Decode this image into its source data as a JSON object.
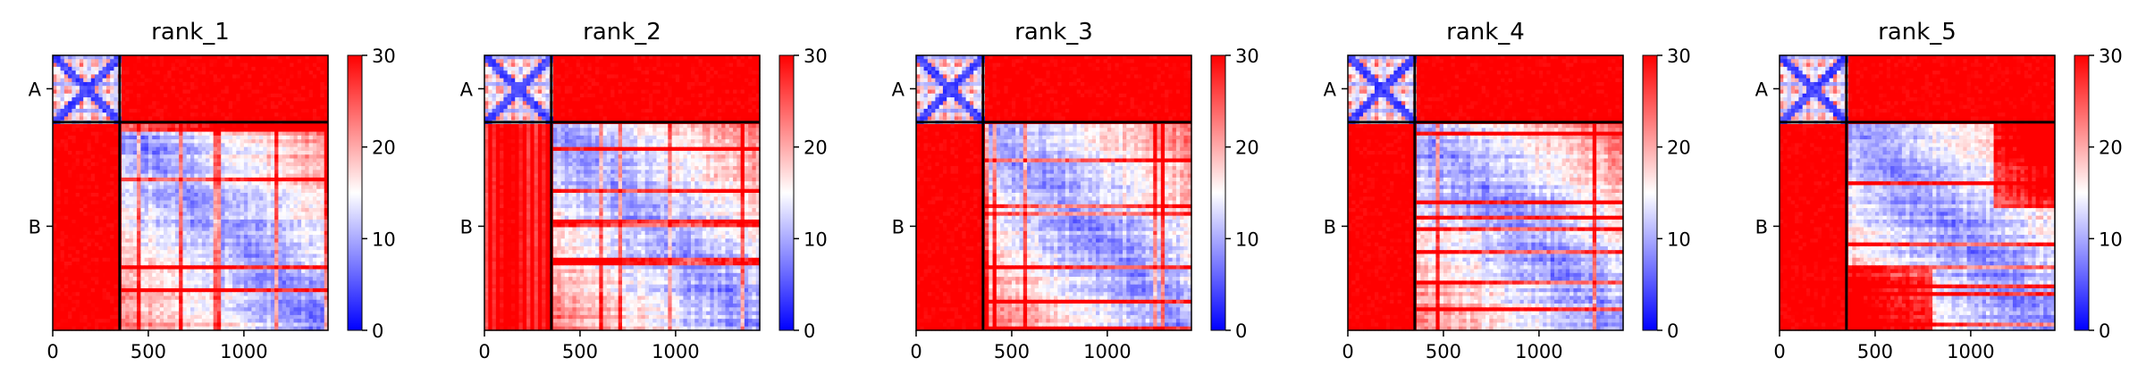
{
  "chart_data": {
    "type": "heatmap",
    "colormap": {
      "name": "bwr",
      "low": "#0000ff",
      "mid": "#ffffff",
      "high": "#ff0000"
    },
    "vmin": 0,
    "vmax": 30,
    "colorbar_ticks": [
      0,
      10,
      20,
      30
    ],
    "xlim": [
      0,
      1440
    ],
    "x_ticks": [
      0,
      500,
      1000
    ],
    "chains": [
      {
        "label": "A",
        "start": 0,
        "end": 350
      },
      {
        "label": "B",
        "start": 350,
        "end": 1440
      }
    ],
    "panels": [
      {
        "title": "rank_1",
        "b_to_a_block": "red",
        "a_to_b_block": "red"
      },
      {
        "title": "rank_2",
        "b_to_a_block": "red-with-light-stripes",
        "a_to_b_block": "red"
      },
      {
        "title": "rank_3",
        "b_to_a_block": "red",
        "a_to_b_block": "red"
      },
      {
        "title": "rank_4",
        "b_to_a_block": "red",
        "a_to_b_block": "red"
      },
      {
        "title": "rank_5",
        "b_to_a_block": "red",
        "a_to_b_block": "red"
      }
    ]
  }
}
